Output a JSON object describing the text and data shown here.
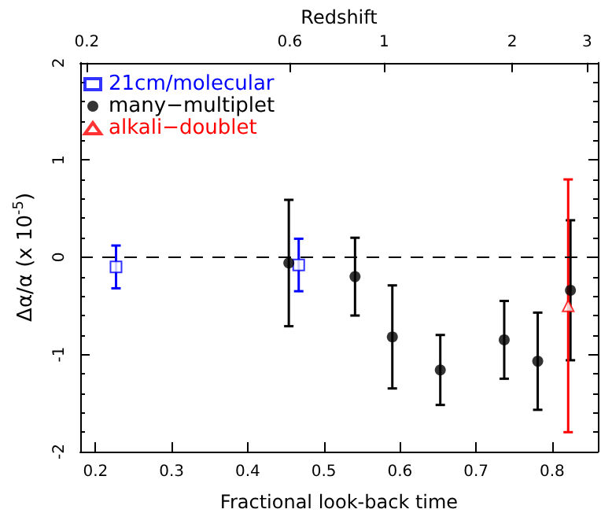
{
  "chart_data": {
    "type": "scatter",
    "xlabel": "Fractional look-back time",
    "ylabel": "Δα/α (x 10$^{-5}$)",
    "x2label": "Redshift",
    "xlim": [
      0.18,
      0.86
    ],
    "xticks": [
      0.2,
      0.3,
      0.4,
      0.5,
      0.6,
      0.7,
      0.8
    ],
    "x2lim": [
      0.193,
      3.18
    ],
    "x2ticks": [
      0.2,
      0.6,
      1,
      2,
      3
    ],
    "log": "x2",
    "ylim": [
      -2,
      2
    ],
    "yticks": [
      -2,
      -1,
      0,
      1,
      2
    ],
    "grid": false,
    "legend": "top left",
    "ref_lines": [
      {
        "axis": "y",
        "value": 0,
        "line_style": "dashed",
        "color": "#000000"
      }
    ],
    "series": [
      {
        "name": "21cm/molecular",
        "color": "#0000ff",
        "marker": "square",
        "x": [
          0.227,
          0.467
        ],
        "values": [
          -0.1,
          -0.08
        ],
        "errors": [
          0.22,
          0.27
        ]
      },
      {
        "name": "many−multiplet",
        "color": "#000000",
        "marker": "circle",
        "x": [
          0.454,
          0.541,
          0.59,
          0.653,
          0.737,
          0.781,
          0.824
        ],
        "values": [
          -0.06,
          -0.2,
          -0.82,
          -1.16,
          -0.85,
          -1.07,
          -0.34
        ],
        "errors": [
          0.65,
          0.4,
          0.53,
          0.36,
          0.4,
          0.5,
          0.72
        ]
      },
      {
        "name": "alkali−doublet",
        "color": "#ff0000",
        "marker": "triangle",
        "x": [
          0.821
        ],
        "values": [
          -0.5
        ],
        "errors": [
          1.3
        ]
      }
    ]
  }
}
